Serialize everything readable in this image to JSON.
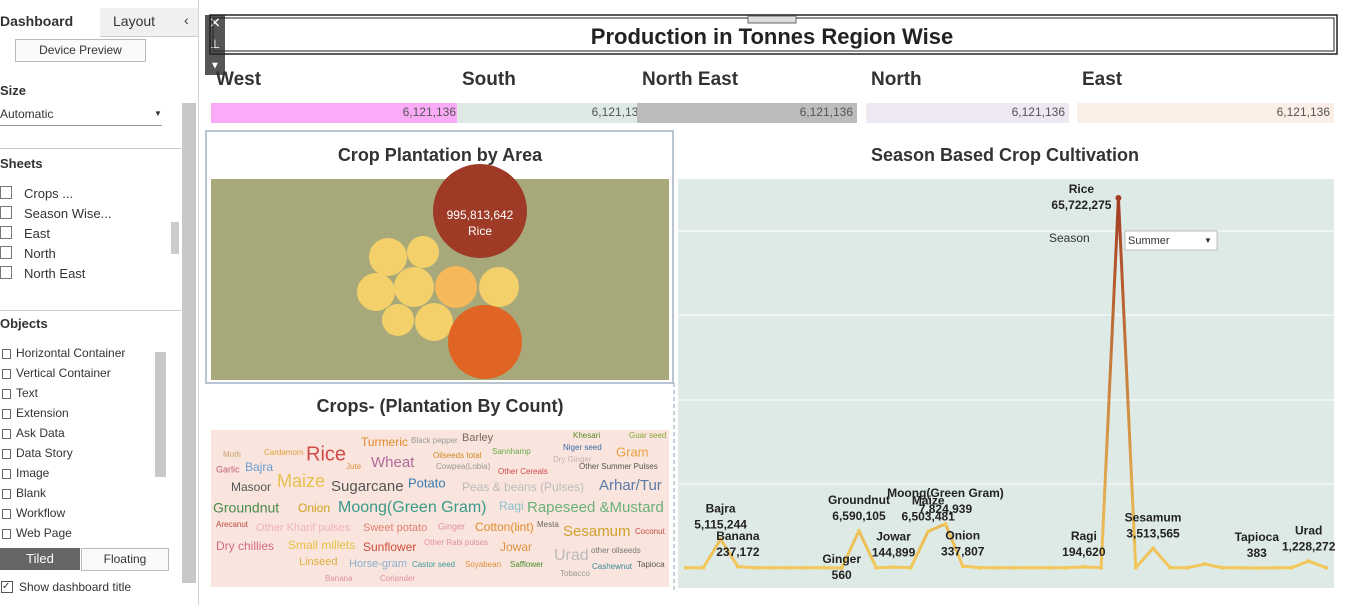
{
  "sidebar": {
    "tabs": [
      "Dashboard",
      "Layout"
    ],
    "device_preview": "Device Preview",
    "size_title": "Size",
    "size_value": "Automatic",
    "sheets_title": "Sheets",
    "sheets": [
      "Crops ...",
      "Season Wise...",
      "East",
      "North",
      "North East"
    ],
    "objects_title": "Objects",
    "objects": [
      "Horizontal Container",
      "Vertical Container",
      "Text",
      "Extension",
      "Ask Data",
      "Data Story",
      "Image",
      "Blank",
      "Workflow",
      "Web Page"
    ],
    "layout_modes": [
      "Tiled",
      "Floating"
    ],
    "show_title": "Show dashboard title"
  },
  "dashboard": {
    "title": "Production in Tonnes Region Wise",
    "regions": [
      {
        "name": "West",
        "value": "6,121,136",
        "color": "#fbaaf7"
      },
      {
        "name": "South",
        "value": "6,121,136",
        "color": "#dde9e5"
      },
      {
        "name": "North East",
        "value": "6,121,136",
        "color": "#bcbcbc"
      },
      {
        "name": "North",
        "value": "6,121,136",
        "color": "#eee8f3"
      },
      {
        "name": "East",
        "value": "6,121,136",
        "color": "#fbeee6"
      }
    ]
  },
  "bubble_chart": {
    "title": "Crop Plantation by Area",
    "label": "Rice",
    "value": 995813642,
    "value_label": "995,813,642",
    "color": "#9e3a26"
  },
  "word_cloud": {
    "title": "Crops- (Plantation By Count)",
    "words": [
      "Khesari",
      "Guar seed",
      "Barley",
      "Black pepper",
      "Turmeric",
      "Niger seed",
      "Moth",
      "Cardamom",
      "Rice",
      "Wheat",
      "Oilseeds total",
      "Sannhamp",
      "Dry Ginger",
      "Gram",
      "Garlic",
      "Bajra",
      "Jute",
      "Cowpea(Lobia)",
      "Other Cereals",
      "Other Summer Pulses",
      "Masoor",
      "Maize",
      "Sugarcane",
      "Potato",
      "Peas & beans (Pulses)",
      "Arhar/Tur",
      "Groundnut",
      "Onion",
      "Moong(Green Gram)",
      "Ragi",
      "Rapeseed &Mustard",
      "Arecanut",
      "Other Kharif pulses",
      "Sweet potato",
      "Ginger",
      "Cotton(lint)",
      "Mesta",
      "Sesamum",
      "Coconut",
      "Dry chillies",
      "Small millets",
      "Sunflower",
      "Other Rabi pulses",
      "Jowar",
      "Urad",
      "other oilseeds",
      "Linseed",
      "Horse-gram",
      "Castor seed",
      "Soyabean",
      "Safflower",
      "Cashewnut",
      "Tapioca",
      "Banana",
      "Coriander",
      "Tobacco"
    ]
  },
  "chart_data": {
    "type": "line",
    "title": "Season Based Crop Cultivation",
    "color": "#f2c85b",
    "peak_color": "#a33c22",
    "filter_label": "Season",
    "filter_value": "Summer",
    "categories": [
      null,
      null,
      "Bajra",
      "Banana",
      null,
      null,
      null,
      null,
      null,
      "Ginger",
      "Groundnut",
      null,
      "Jowar",
      null,
      "Maize",
      "Moong(Green Gram)",
      "Onion",
      null,
      null,
      null,
      null,
      null,
      null,
      "Ragi",
      null,
      "Rice",
      null,
      "Sesamum",
      null,
      null,
      null,
      null,
      null,
      "Tapioca",
      null,
      null,
      "Urad",
      null
    ],
    "values": [
      40000,
      40000,
      5115244,
      237172,
      40000,
      40000,
      40000,
      40000,
      40000,
      560,
      6590105,
      40000,
      144899,
      40000,
      6503481,
      7824939,
      337807,
      40000,
      40000,
      40000,
      40000,
      40000,
      40000,
      194620,
      40000,
      65722275,
      40000,
      3513565,
      40000,
      40000,
      700000,
      40000,
      40000,
      383,
      40000,
      40000,
      1228272,
      40000
    ],
    "value_labels": [
      null,
      null,
      "5,115,244",
      "237,172",
      null,
      null,
      null,
      null,
      null,
      "560",
      "6,590,105",
      null,
      "144,899",
      null,
      "6,503,481",
      "7,824,939",
      "337,807",
      null,
      null,
      null,
      null,
      null,
      null,
      "194,620",
      null,
      "65,722,275",
      null,
      "3,513,565",
      null,
      null,
      null,
      null,
      null,
      "383",
      null,
      null,
      "1,228,272",
      null
    ]
  }
}
